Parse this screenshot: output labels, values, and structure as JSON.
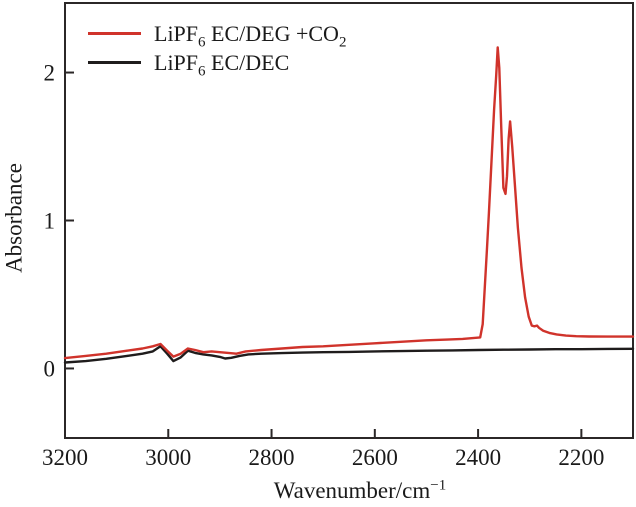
{
  "colors": {
    "background": "#ffffff",
    "frame": "#2b2727",
    "text": "#1a1a1a",
    "red_series": "#d0332b",
    "black_series": "#1f1c1c"
  },
  "axes": {
    "y_label": "Absorbance",
    "x_label_parts": [
      {
        "t": "Wavenumber/cm"
      },
      {
        "t": "−1",
        "sup": true
      }
    ]
  },
  "legend": {
    "items": [
      {
        "name": "LiPF6 EC/DEG +CO2",
        "color": "#d0332b",
        "parts": [
          {
            "t": "LiPF"
          },
          {
            "t": "6",
            "sub": true
          },
          {
            "t": " EC/DEG +CO"
          },
          {
            "t": "2",
            "sub": true
          }
        ]
      },
      {
        "name": "LiPF6 EC/DEC",
        "color": "#1f1c1c",
        "parts": [
          {
            "t": "LiPF"
          },
          {
            "t": "6",
            "sub": true
          },
          {
            "t": " EC/DEC"
          }
        ]
      }
    ]
  },
  "chart_data": {
    "type": "line",
    "title": "",
    "xlabel": "Wavenumber/cm^-1",
    "ylabel": "Absorbance",
    "xlim": [
      3200,
      2100
    ],
    "ylim": [
      -0.47,
      2.47
    ],
    "x_ticks": [
      3200,
      3000,
      2800,
      2600,
      2400,
      2200
    ],
    "y_ticks": [
      0,
      1,
      2
    ],
    "x_axis_direction": "decreasing",
    "grid": false,
    "legend_position": "upper-left",
    "series": [
      {
        "name": "LiPF6 EC/DEC",
        "color": "#1f1c1c",
        "x": [
          3200,
          3160,
          3120,
          3080,
          3050,
          3030,
          3015,
          3002,
          2990,
          2976,
          2962,
          2948,
          2932,
          2916,
          2900,
          2890,
          2878,
          2862,
          2845,
          2820,
          2780,
          2740,
          2700,
          2650,
          2600,
          2550,
          2500,
          2450,
          2400,
          2350,
          2300,
          2250,
          2200,
          2150,
          2100
        ],
        "y": [
          0.04,
          0.05,
          0.065,
          0.085,
          0.1,
          0.115,
          0.15,
          0.1,
          0.05,
          0.075,
          0.12,
          0.105,
          0.095,
          0.088,
          0.078,
          0.067,
          0.072,
          0.085,
          0.095,
          0.1,
          0.104,
          0.107,
          0.11,
          0.112,
          0.115,
          0.117,
          0.12,
          0.122,
          0.125,
          0.127,
          0.128,
          0.13,
          0.13,
          0.132,
          0.133
        ]
      },
      {
        "name": "LiPF6 EC/DEG +CO2",
        "color": "#d0332b",
        "x": [
          3200,
          3160,
          3120,
          3080,
          3050,
          3030,
          3015,
          3002,
          2990,
          2976,
          2962,
          2948,
          2932,
          2916,
          2900,
          2884,
          2868,
          2850,
          2820,
          2780,
          2740,
          2700,
          2650,
          2600,
          2550,
          2500,
          2460,
          2430,
          2410,
          2396,
          2391,
          2387,
          2383,
          2379,
          2374,
          2369,
          2365,
          2362,
          2359,
          2355,
          2351,
          2347,
          2344,
          2341,
          2338,
          2334,
          2329,
          2323,
          2316,
          2309,
          2302,
          2296,
          2291,
          2286,
          2282,
          2274,
          2262,
          2248,
          2230,
          2210,
          2185,
          2150,
          2100
        ],
        "y": [
          0.07,
          0.085,
          0.1,
          0.12,
          0.135,
          0.15,
          0.165,
          0.12,
          0.08,
          0.1,
          0.135,
          0.125,
          0.11,
          0.115,
          0.11,
          0.105,
          0.1,
          0.115,
          0.125,
          0.135,
          0.145,
          0.15,
          0.16,
          0.17,
          0.18,
          0.19,
          0.195,
          0.2,
          0.205,
          0.21,
          0.3,
          0.55,
          0.8,
          1.05,
          1.4,
          1.75,
          1.98,
          2.17,
          2.03,
          1.62,
          1.22,
          1.18,
          1.3,
          1.55,
          1.67,
          1.5,
          1.25,
          0.95,
          0.68,
          0.48,
          0.35,
          0.29,
          0.285,
          0.29,
          0.275,
          0.255,
          0.24,
          0.23,
          0.222,
          0.218,
          0.216,
          0.215,
          0.215
        ]
      }
    ]
  }
}
